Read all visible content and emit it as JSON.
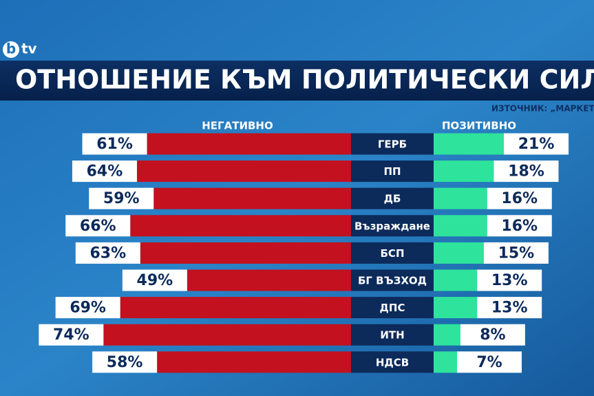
{
  "chart_data": {
    "type": "diverging-bar",
    "logo": [
      "b",
      "tv"
    ],
    "title": "ОТНОШЕНИЕ КЪМ ПОЛИТИЧЕСКИ СИЛИ",
    "source": "ИЗТОЧНИК: „МАРКЕТ",
    "categories": [
      "ГЕРБ",
      "ПП",
      "ДБ",
      "Възраждане",
      "БСП",
      "БГ ВЪЗХОД",
      "ДПС",
      "ИТН",
      "НДСВ"
    ],
    "series": [
      {
        "name": "НЕГАТИВНО",
        "color": "#c3111f",
        "side": "left",
        "values": [
          61,
          64,
          59,
          66,
          63,
          49,
          69,
          74,
          58
        ],
        "value_labels": [
          "61%",
          "64%",
          "59%",
          "66%",
          "63%",
          "49%",
          "69%",
          "74%",
          "58%"
        ]
      },
      {
        "name": "ПОЗИТИВНО",
        "color": "#2ee39b",
        "side": "right",
        "values": [
          21,
          18,
          16,
          16,
          15,
          13,
          13,
          8,
          7
        ],
        "value_labels": [
          "21%",
          "18%",
          "16%",
          "16%",
          "15%",
          "13%",
          "13%",
          "8%",
          "7%"
        ]
      }
    ]
  }
}
